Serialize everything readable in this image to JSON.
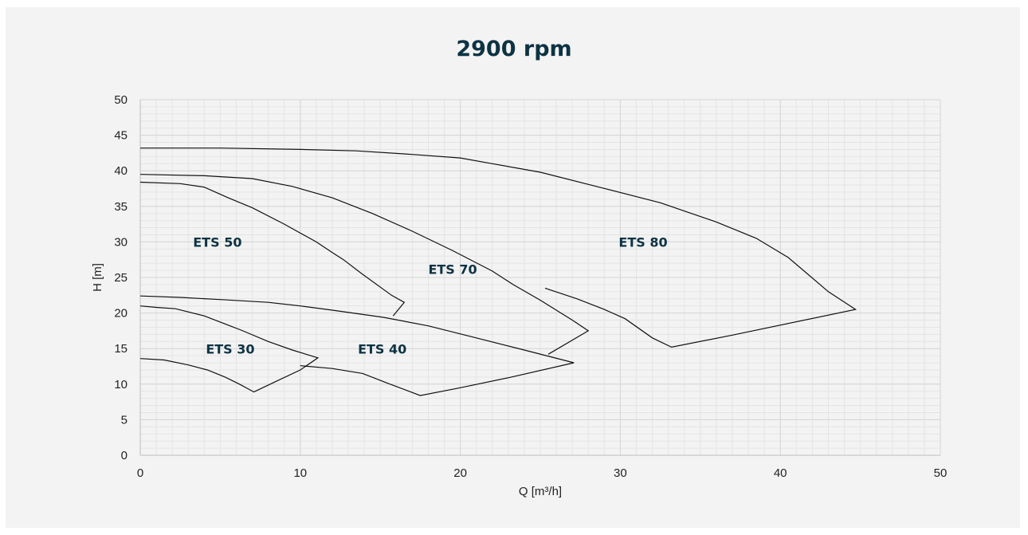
{
  "chart_data": {
    "type": "line",
    "title": "2900 rpm",
    "xlabel": "Q [m³/h]",
    "ylabel": "H [m]",
    "xlim": [
      0,
      50
    ],
    "ylim": [
      0,
      50
    ],
    "xticks": [
      0,
      10,
      20,
      30,
      40,
      50
    ],
    "yticks": [
      0,
      5,
      10,
      15,
      20,
      25,
      30,
      35,
      40,
      45,
      50
    ],
    "grid": true,
    "regions": [
      {
        "label": "ETS 30",
        "label_pos": [
          4.1,
          14.3
        ],
        "boundary": [
          [
            0,
            13.6
          ],
          [
            1.5,
            13.4
          ],
          [
            3,
            12.7
          ],
          [
            4.2,
            12
          ],
          [
            5.3,
            11
          ],
          [
            6.2,
            10
          ],
          [
            7.1,
            8.9
          ],
          [
            8.5,
            10.4
          ],
          [
            10,
            12
          ],
          [
            11.1,
            13.7
          ],
          [
            9.5,
            14.8
          ],
          [
            8,
            16
          ],
          [
            6.3,
            17.6
          ],
          [
            5.5,
            18.3
          ],
          [
            4,
            19.6
          ],
          [
            2.2,
            20.6
          ],
          [
            1,
            20.8
          ],
          [
            0,
            21
          ]
        ]
      },
      {
        "label": "ETS 40",
        "label_pos": [
          13.6,
          14.3
        ],
        "boundary": [
          [
            10,
            12.6
          ],
          [
            12,
            12.2
          ],
          [
            13.9,
            11.5
          ],
          [
            15.5,
            10.1
          ],
          [
            17.5,
            8.4
          ],
          [
            20,
            9.5
          ],
          [
            23,
            10.9
          ],
          [
            27.1,
            13
          ],
          [
            24,
            14.8
          ],
          [
            21,
            16.5
          ],
          [
            18,
            18.2
          ],
          [
            15.2,
            19.4
          ],
          [
            12,
            20.4
          ],
          [
            10,
            21
          ],
          [
            8,
            21.5
          ],
          [
            5,
            21.9
          ],
          [
            2.5,
            22.2
          ],
          [
            0,
            22.4
          ]
        ]
      },
      {
        "label": "ETS 50",
        "label_pos": [
          3.3,
          29.3
        ],
        "boundary": [
          [
            15.8,
            19.6
          ],
          [
            16.5,
            21.5
          ],
          [
            15.7,
            22.5
          ],
          [
            13.8,
            25.6
          ],
          [
            12.7,
            27.5
          ],
          [
            12,
            28.5
          ],
          [
            11,
            30
          ],
          [
            9,
            32.5
          ],
          [
            7,
            34.8
          ],
          [
            5.5,
            36.2
          ],
          [
            4,
            37.7
          ],
          [
            2.5,
            38.2
          ],
          [
            0,
            38.4
          ]
        ]
      },
      {
        "label": "ETS 70",
        "label_pos": [
          18,
          25.5
        ],
        "boundary": [
          [
            25.5,
            14.2
          ],
          [
            28,
            17.5
          ],
          [
            27,
            19
          ],
          [
            25,
            21.8
          ],
          [
            23.3,
            24
          ],
          [
            22,
            25.9
          ],
          [
            19.5,
            28.8
          ],
          [
            17,
            31.5
          ],
          [
            14.5,
            34
          ],
          [
            12,
            36.2
          ],
          [
            9.5,
            37.8
          ],
          [
            7,
            38.9
          ],
          [
            4,
            39.3
          ],
          [
            0,
            39.5
          ]
        ]
      },
      {
        "label": "ETS 80",
        "label_pos": [
          29.9,
          29.3
        ],
        "boundary": [
          [
            25.3,
            23.5
          ],
          [
            27.3,
            22
          ],
          [
            29,
            20.5
          ],
          [
            30.3,
            19.2
          ],
          [
            32,
            16.5
          ],
          [
            33.2,
            15.2
          ],
          [
            37,
            16.9
          ],
          [
            44.7,
            20.5
          ],
          [
            43,
            23
          ],
          [
            40.5,
            27.8
          ],
          [
            38.5,
            30.5
          ],
          [
            36,
            32.8
          ],
          [
            32.5,
            35.5
          ],
          [
            28.5,
            37.8
          ],
          [
            25,
            39.8
          ],
          [
            22,
            41
          ],
          [
            20,
            41.8
          ],
          [
            17,
            42.3
          ],
          [
            13.5,
            42.8
          ],
          [
            10,
            43
          ],
          [
            5,
            43.2
          ],
          [
            0,
            43.2
          ]
        ]
      }
    ]
  }
}
